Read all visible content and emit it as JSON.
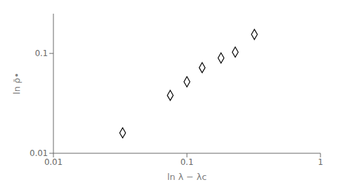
{
  "chart_data": {
    "type": "scatter",
    "x": [
      0.033,
      0.075,
      0.1,
      0.13,
      0.18,
      0.23,
      0.32
    ],
    "values": [
      0.016,
      0.038,
      0.052,
      0.072,
      0.09,
      0.103,
      0.155
    ],
    "xlabel": "ln λ − λc",
    "ylabel": "ln ρ̄•",
    "xlim": [
      0.01,
      1.0
    ],
    "ylim": [
      0.01,
      0.25
    ],
    "xticks": [
      0.01,
      0.1,
      1
    ],
    "yticks": [
      0.01,
      0.1
    ],
    "log": true,
    "grid": false,
    "marker": "diamond",
    "color": "black"
  }
}
